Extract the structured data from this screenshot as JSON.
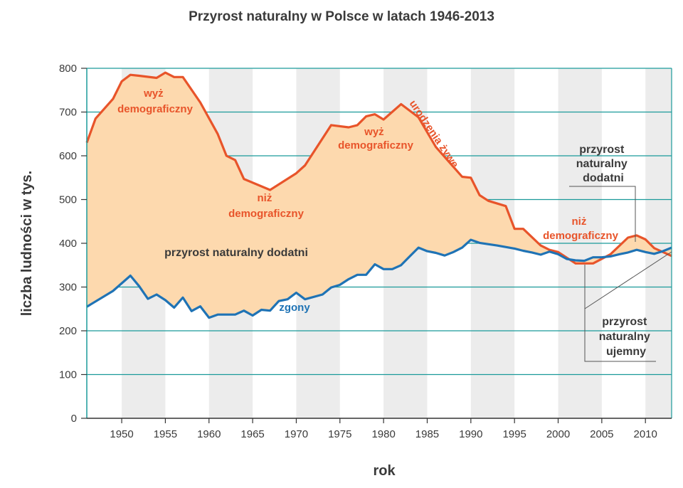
{
  "chart_data": {
    "type": "line",
    "title": "Przyrost naturalny w Polsce w latach 1946-2013",
    "xlabel": "rok",
    "ylabel": "liczba ludności w tys.",
    "xlim": [
      1946,
      2013
    ],
    "ylim": [
      0,
      800
    ],
    "xticks": [
      1950,
      1955,
      1960,
      1965,
      1970,
      1975,
      1980,
      1985,
      1990,
      1995,
      2000,
      2005,
      2010
    ],
    "yticks": [
      0,
      100,
      200,
      300,
      400,
      500,
      600,
      700,
      800
    ],
    "grid": true,
    "colors": {
      "births": "#e8542a",
      "deaths": "#1f73b5",
      "fill": "#fdd9ae",
      "grid": "#1a9a9a",
      "band": "#ececec"
    },
    "series": [
      {
        "name": "urodzenia żywe",
        "x": [
          1946,
          1947,
          1949,
          1950,
          1951,
          1952,
          1954,
          1955,
          1956,
          1957,
          1959,
          1961,
          1962,
          1963,
          1964,
          1967,
          1970,
          1971,
          1974,
          1976,
          1977,
          1978,
          1979,
          1980,
          1982,
          1984,
          1986,
          1989,
          1990,
          1991,
          1992,
          1994,
          1995,
          1996,
          1998,
          1999,
          2000,
          2002,
          2004,
          2006,
          2008,
          2009,
          2010,
          2011,
          2013
        ],
        "values": [
          630,
          685,
          730,
          770,
          785,
          783,
          778,
          790,
          780,
          780,
          722,
          650,
          600,
          590,
          547,
          522,
          560,
          578,
          670,
          665,
          670,
          690,
          695,
          683,
          718,
          688,
          620,
          552,
          550,
          510,
          497,
          485,
          433,
          433,
          395,
          385,
          380,
          354,
          354,
          375,
          413,
          418,
          409,
          389,
          371
        ]
      },
      {
        "name": "zgony",
        "x": [
          1946,
          1949,
          1951,
          1952,
          1953,
          1954,
          1955,
          1956,
          1957,
          1958,
          1959,
          1960,
          1961,
          1963,
          1964,
          1965,
          1966,
          1967,
          1968,
          1969,
          1970,
          1971,
          1973,
          1974,
          1975,
          1976,
          1977,
          1978,
          1979,
          1980,
          1981,
          1982,
          1983,
          1984,
          1985,
          1986,
          1987,
          1988,
          1989,
          1990,
          1991,
          1993,
          1995,
          1996,
          1997,
          1998,
          1999,
          2000,
          2001,
          2002,
          2003,
          2004,
          2005,
          2006,
          2007,
          2008,
          2009,
          2010,
          2011,
          2012,
          2013
        ],
        "values": [
          255,
          291,
          326,
          302,
          273,
          283,
          270,
          253,
          276,
          245,
          256,
          230,
          237,
          237,
          246,
          235,
          248,
          246,
          268,
          272,
          287,
          272,
          283,
          299,
          305,
          318,
          328,
          328,
          352,
          341,
          341,
          350,
          370,
          390,
          382,
          378,
          372,
          380,
          390,
          408,
          401,
          395,
          388,
          383,
          379,
          374,
          381,
          375,
          364,
          361,
          360,
          368,
          368,
          370,
          375,
          379,
          385,
          380,
          376,
          382,
          390
        ]
      }
    ],
    "annotations": {
      "wyz1": [
        "wyż",
        "demograficzny"
      ],
      "wyz2": [
        "wyż",
        "demograficzny"
      ],
      "niz1": [
        "niż",
        "demograficzny"
      ],
      "niz2": [
        "niż",
        "demograficzny"
      ],
      "births_label": "urodzenia żywe",
      "deaths_label": "zgony",
      "pos_main": "przyrost naturalny dodatni",
      "pos_right": [
        "przyrost",
        "naturalny",
        "dodatni"
      ],
      "neg_right": [
        "przyrost",
        "naturalny",
        "ujemny"
      ]
    }
  }
}
